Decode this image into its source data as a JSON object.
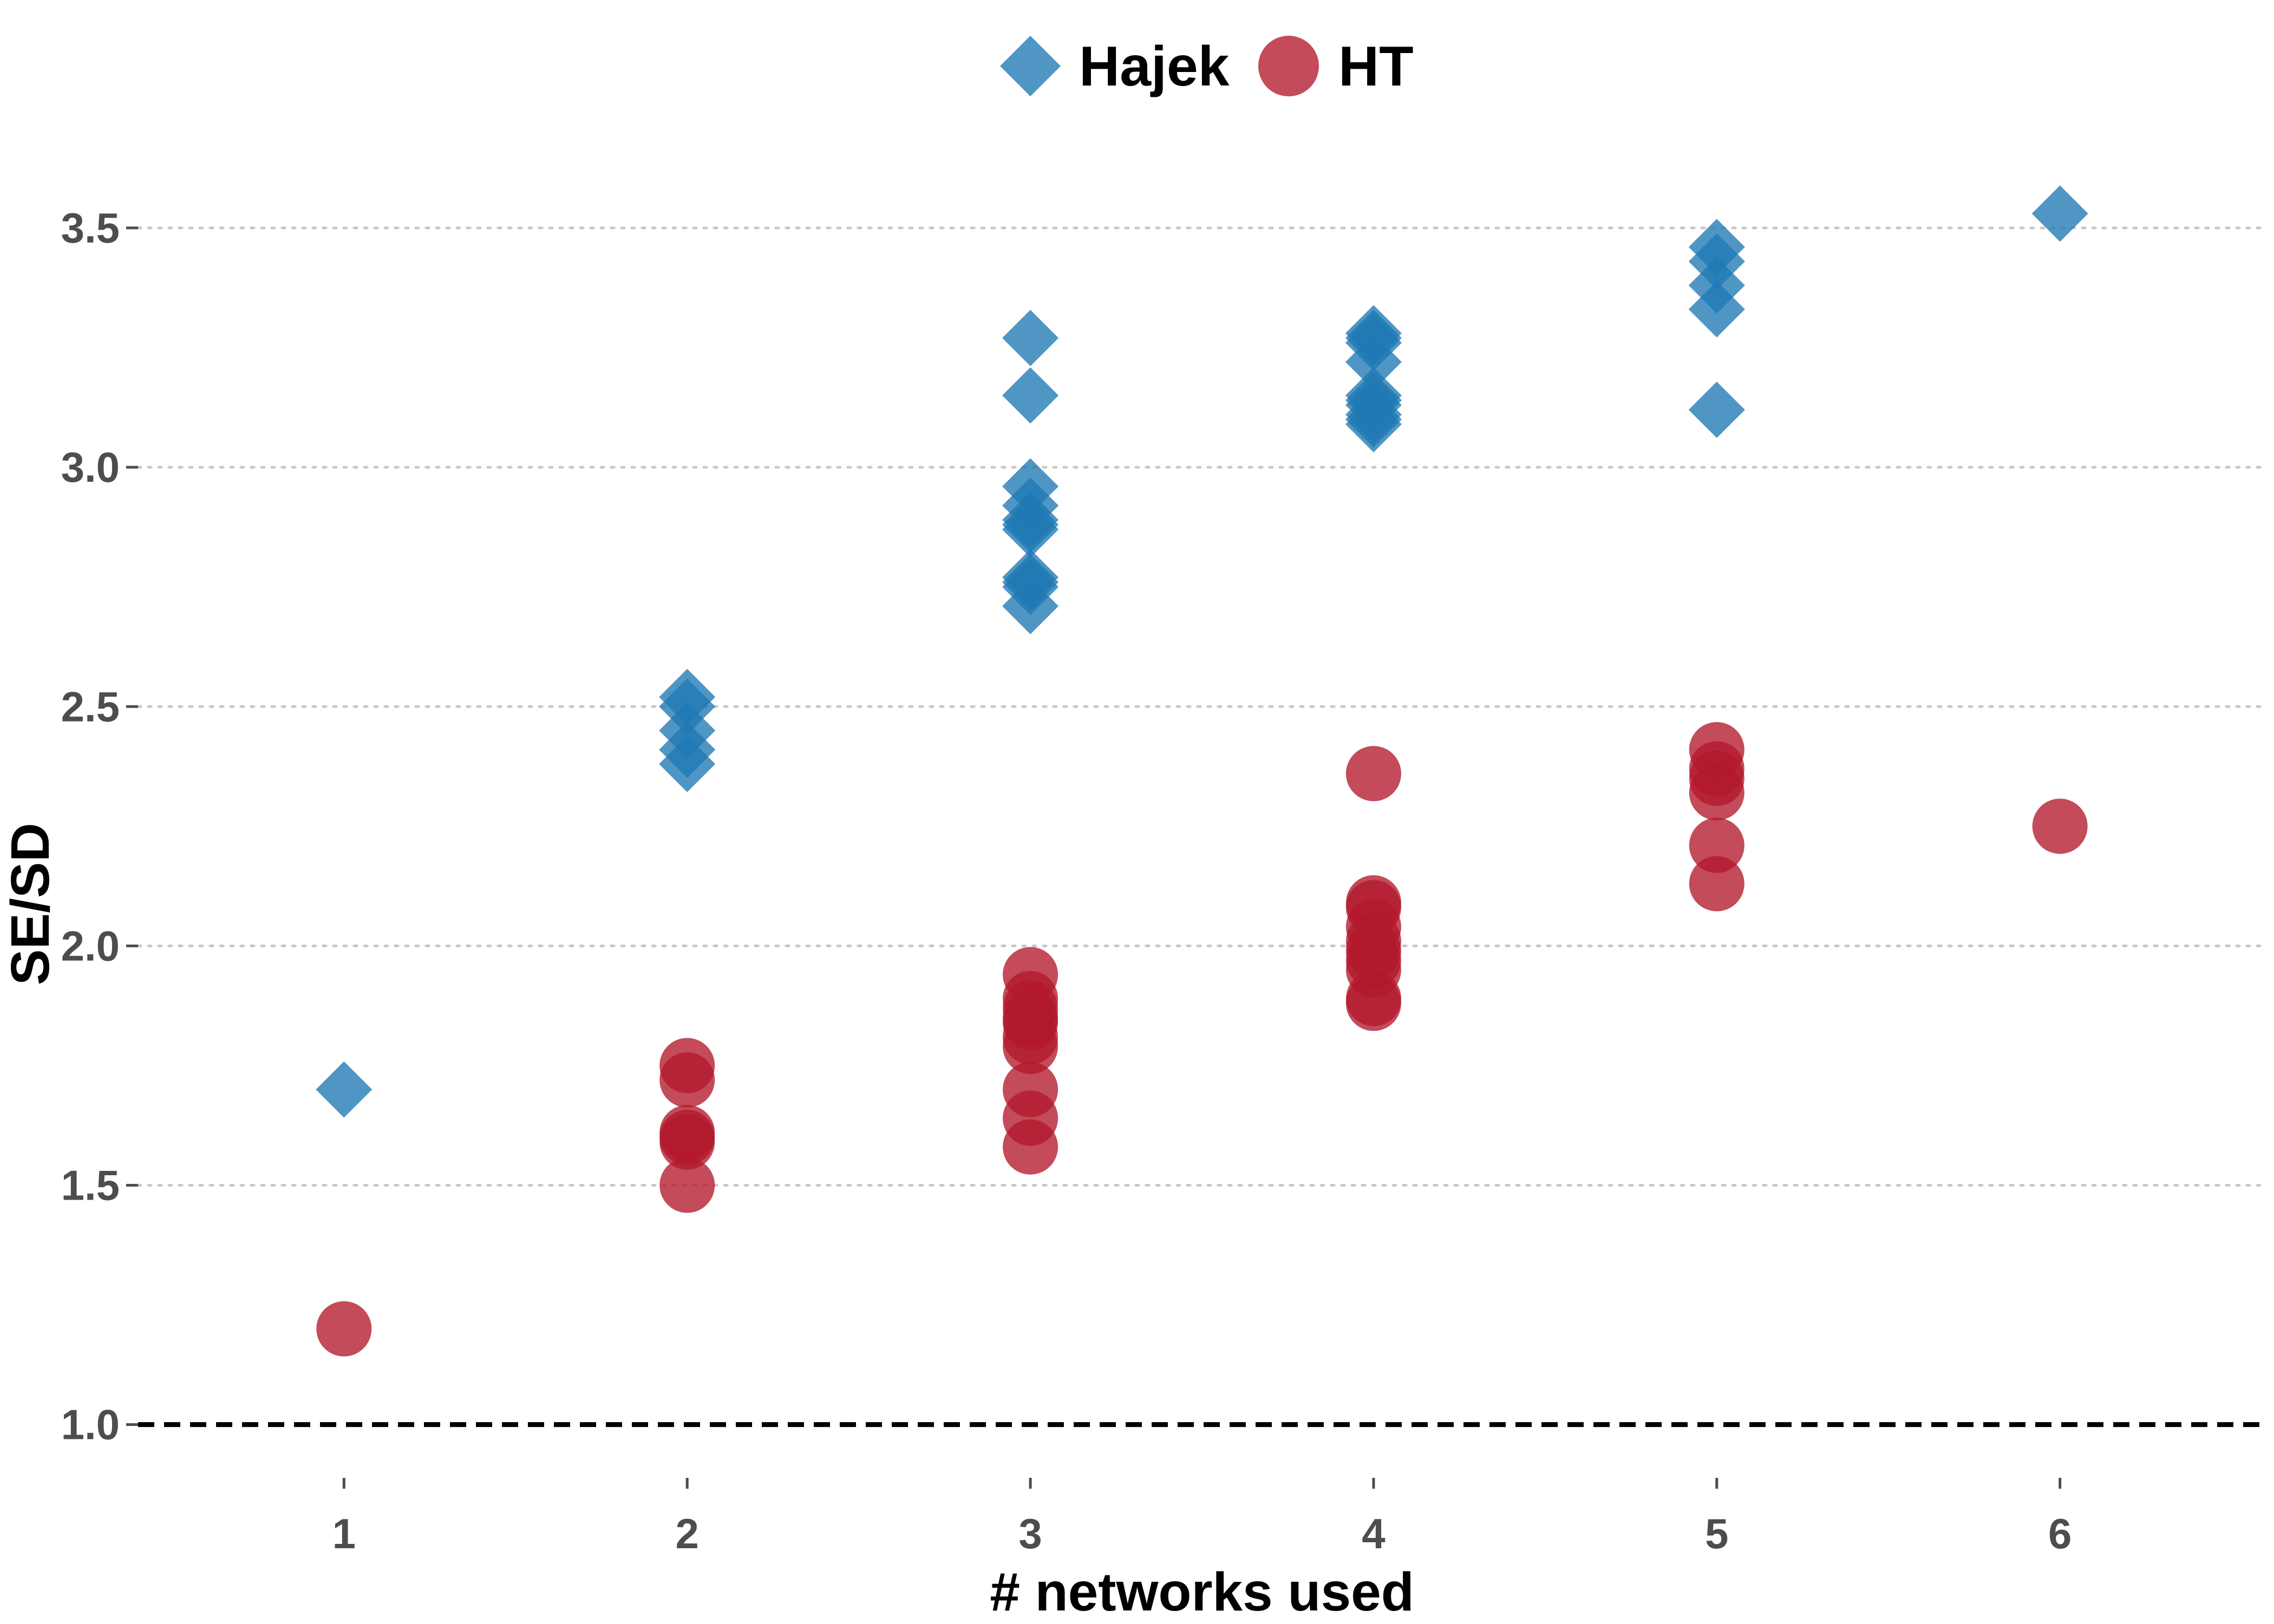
{
  "chart_data": {
    "type": "scatter",
    "xlabel": "# networks used",
    "ylabel": "SE/SD",
    "xlim": [
      0.4,
      6.6
    ],
    "ylim": [
      0.9,
      3.75
    ],
    "x_ticks": [
      "1",
      "2",
      "3",
      "4",
      "5",
      "6"
    ],
    "y_ticks": [
      "1.0",
      "1.5",
      "2.0",
      "2.5",
      "3.0",
      "3.5"
    ],
    "grid": "horizontal-dotted",
    "reference_line": {
      "y": 1.0,
      "style": "dashed"
    },
    "legend": {
      "placement": "top-center"
    },
    "series": [
      {
        "name": "Hajek",
        "marker": "diamond",
        "color": "#1f78b4",
        "points": [
          [
            1,
            1.7
          ],
          [
            2,
            2.52
          ],
          [
            2,
            2.5
          ],
          [
            2,
            2.45
          ],
          [
            2,
            2.41
          ],
          [
            2,
            2.38
          ],
          [
            3,
            3.27
          ],
          [
            3,
            3.15
          ],
          [
            3,
            2.96
          ],
          [
            3,
            2.92
          ],
          [
            3,
            2.89
          ],
          [
            3,
            2.88
          ],
          [
            3,
            2.87
          ],
          [
            3,
            2.77
          ],
          [
            3,
            2.76
          ],
          [
            3,
            2.75
          ],
          [
            3,
            2.71
          ],
          [
            4,
            3.28
          ],
          [
            4,
            3.27
          ],
          [
            4,
            3.26
          ],
          [
            4,
            3.22
          ],
          [
            4,
            3.15
          ],
          [
            4,
            3.14
          ],
          [
            4,
            3.13
          ],
          [
            4,
            3.11
          ],
          [
            4,
            3.1
          ],
          [
            4,
            3.09
          ],
          [
            5,
            3.46
          ],
          [
            5,
            3.43
          ],
          [
            5,
            3.38
          ],
          [
            5,
            3.33
          ],
          [
            5,
            3.12
          ],
          [
            6,
            3.53
          ]
        ]
      },
      {
        "name": "HT",
        "marker": "circle",
        "color": "#b2182b",
        "points": [
          [
            1,
            1.2
          ],
          [
            2,
            1.75
          ],
          [
            2,
            1.72
          ],
          [
            2,
            1.61
          ],
          [
            2,
            1.6
          ],
          [
            2,
            1.59
          ],
          [
            2,
            1.5
          ],
          [
            3,
            1.94
          ],
          [
            3,
            1.89
          ],
          [
            3,
            1.87
          ],
          [
            3,
            1.85
          ],
          [
            3,
            1.84
          ],
          [
            3,
            1.81
          ],
          [
            3,
            1.79
          ],
          [
            3,
            1.7
          ],
          [
            3,
            1.64
          ],
          [
            3,
            1.58
          ],
          [
            4,
            2.36
          ],
          [
            4,
            2.09
          ],
          [
            4,
            2.08
          ],
          [
            4,
            2.04
          ],
          [
            4,
            2.01
          ],
          [
            4,
            1.99
          ],
          [
            4,
            1.97
          ],
          [
            4,
            1.95
          ],
          [
            4,
            1.89
          ],
          [
            4,
            1.88
          ],
          [
            5,
            2.41
          ],
          [
            5,
            2.37
          ],
          [
            5,
            2.35
          ],
          [
            5,
            2.32
          ],
          [
            5,
            2.21
          ],
          [
            5,
            2.13
          ],
          [
            6,
            2.25
          ]
        ]
      }
    ]
  }
}
